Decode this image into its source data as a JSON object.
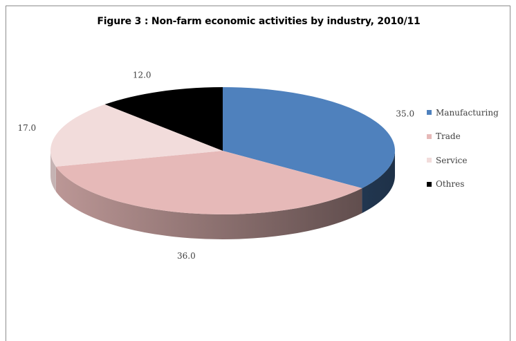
{
  "chart_data": {
    "type": "pie",
    "title": "Figure 3 : Non-farm economic activities by industry, 2010/11",
    "categories": [
      "Manufacturing",
      "Trade",
      "Service",
      "Othres"
    ],
    "legend_labels": [
      "Manufacturing",
      "Trade",
      "Service",
      "Othres"
    ],
    "values": [
      35.0,
      36.0,
      17.0,
      12.0
    ],
    "value_labels": [
      "35.0",
      "36.0",
      "17.0",
      "12.0"
    ],
    "colors": [
      "#4f81bd",
      "#e6b9b8",
      "#f2dcdb",
      "#000000"
    ],
    "style": "3d",
    "start": "12 o'clock",
    "direction": "clockwise",
    "legend_position": "right"
  }
}
